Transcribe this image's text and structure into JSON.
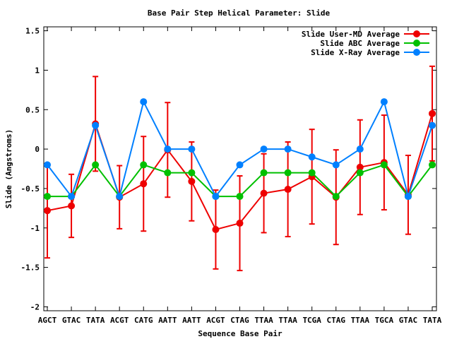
{
  "chart_data": {
    "type": "line",
    "title": "Base Pair Step Helical Parameter: Slide",
    "xlabel": "Sequence Base Pair",
    "ylabel": "Slide (Angstroms)",
    "ylim": [
      -2.05,
      1.55
    ],
    "yticks": [
      1.5,
      1,
      0.5,
      0,
      -0.5,
      -1,
      -1.5,
      -2
    ],
    "ytick_labels": [
      "1.5",
      "1",
      "0.5",
      "0",
      "-0.5",
      "-1",
      "-1.5",
      "-2"
    ],
    "categories": [
      "AGCT",
      "GTAC",
      "TATA",
      "ACGT",
      "CATG",
      "AATT",
      "AATT",
      "ACGT",
      "CTAG",
      "TTAA",
      "TTAA",
      "TCGA",
      "CTAG",
      "TTAA",
      "TGCA",
      "GTAC",
      "TATA"
    ],
    "grid": false,
    "legend_position": "top-right",
    "series": [
      {
        "name": "Slide User-MD Average",
        "color": "#ee0000",
        "values": [
          -0.78,
          -0.72,
          0.32,
          -0.61,
          -0.44,
          -0.01,
          -0.41,
          -1.02,
          -0.94,
          -0.56,
          -0.51,
          -0.35,
          -0.61,
          -0.23,
          -0.17,
          -0.58,
          0.45
        ],
        "errors": [
          0.6,
          0.4,
          0.6,
          0.4,
          0.6,
          0.6,
          0.5,
          0.5,
          0.6,
          0.5,
          0.6,
          0.6,
          0.6,
          0.6,
          0.6,
          0.5,
          0.6
        ]
      },
      {
        "name": "Slide ABC Average",
        "color": "#00c000",
        "values": [
          -0.6,
          -0.6,
          -0.2,
          -0.6,
          -0.2,
          -0.3,
          -0.3,
          -0.6,
          -0.6,
          -0.3,
          -0.3,
          -0.3,
          -0.6,
          -0.3,
          -0.2,
          -0.6,
          -0.2
        ]
      },
      {
        "name": "Slide X-Ray Average",
        "color": "#0080ff",
        "values": [
          -0.2,
          -0.6,
          0.3,
          -0.6,
          0.6,
          0.0,
          0.0,
          -0.6,
          -0.2,
          0.0,
          0.0,
          -0.1,
          -0.2,
          0.0,
          0.6,
          -0.6,
          0.3
        ]
      }
    ]
  }
}
